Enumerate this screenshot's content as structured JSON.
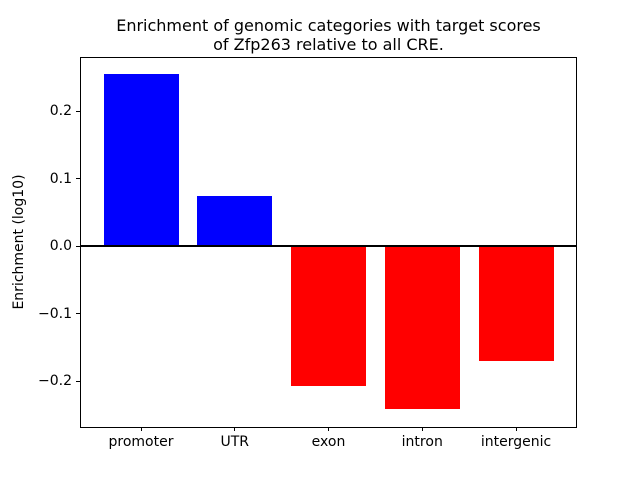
{
  "figure": {
    "background": "#ffffff",
    "text_color": "#000000"
  },
  "chart_data": {
    "type": "bar",
    "title": "Enrichment of genomic categories with target scores\nof Zfp263 relative to all CRE.",
    "xlabel": "",
    "ylabel": "Enrichment (log10)",
    "categories": [
      "promoter",
      "UTR",
      "exon",
      "intron",
      "intergenic"
    ],
    "values": [
      0.255,
      0.074,
      -0.207,
      -0.242,
      -0.17
    ],
    "bar_colors": [
      "#0000ff",
      "#0000ff",
      "#ff0000",
      "#ff0000",
      "#ff0000"
    ],
    "positive_color": "#0000ff",
    "negative_color": "#ff0000",
    "bar_width": 0.8,
    "xlim": [
      -0.64,
      4.64
    ],
    "ylim": [
      -0.268,
      0.279
    ],
    "yticks": [
      0.2,
      0.1,
      0.0,
      -0.1,
      -0.2
    ],
    "ytick_labels": [
      "0.2",
      "0.1",
      "0.0",
      "−0.1",
      "−0.2"
    ],
    "zero_line": true,
    "grid": false,
    "legend": null
  }
}
